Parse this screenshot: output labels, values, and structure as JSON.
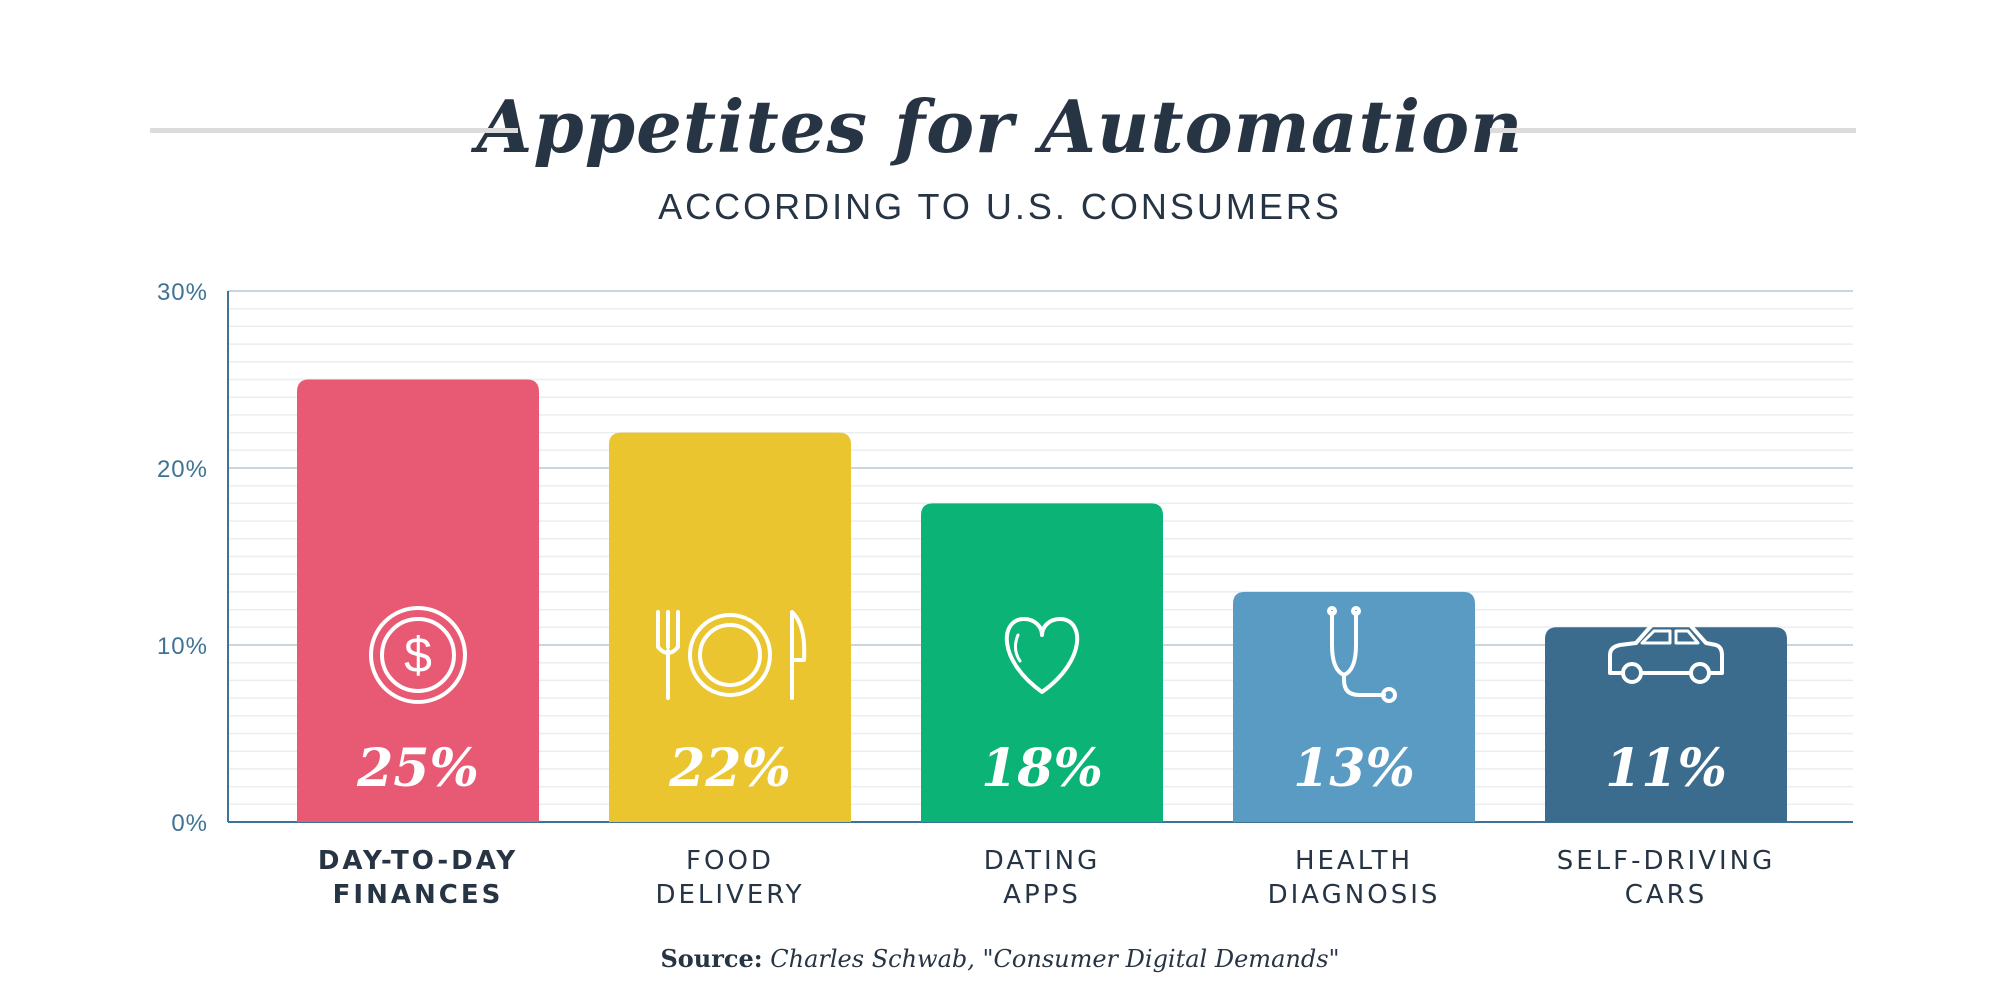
{
  "header": {
    "title": "Appetites for Automation",
    "subtitle": "ACCORDING TO U.S. CONSUMERS"
  },
  "source": {
    "label": "Source:",
    "text": "Charles Schwab, \"Consumer Digital Demands\""
  },
  "chart_data": {
    "type": "bar",
    "title": "Appetites for Automation",
    "subtitle": "ACCORDING TO U.S. CONSUMERS",
    "xlabel": "",
    "ylabel": "",
    "ylim": [
      0,
      30
    ],
    "yticks": [
      0,
      10,
      20,
      30
    ],
    "ytick_labels": [
      "0%",
      "10%",
      "20%",
      "30%"
    ],
    "grid": true,
    "categories": [
      {
        "lines": [
          "DAY-TO-DAY",
          "FINANCES"
        ],
        "icon": "dollar-coin-icon",
        "bold": true
      },
      {
        "lines": [
          "FOOD",
          "DELIVERY"
        ],
        "icon": "plate-fork-knife-icon",
        "bold": false
      },
      {
        "lines": [
          "DATING",
          "APPS"
        ],
        "icon": "heart-icon",
        "bold": false
      },
      {
        "lines": [
          "HEALTH",
          "DIAGNOSIS"
        ],
        "icon": "stethoscope-icon",
        "bold": false
      },
      {
        "lines": [
          "SELF-DRIVING",
          "CARS"
        ],
        "icon": "car-icon",
        "bold": false
      }
    ],
    "values": [
      25,
      22,
      18,
      13,
      11
    ],
    "value_labels": [
      "25%",
      "22%",
      "18%",
      "13%",
      "11%"
    ],
    "colors": [
      "#e85a74",
      "#eac530",
      "#0cb377",
      "#5a9bc4",
      "#3b6c8d"
    ]
  }
}
